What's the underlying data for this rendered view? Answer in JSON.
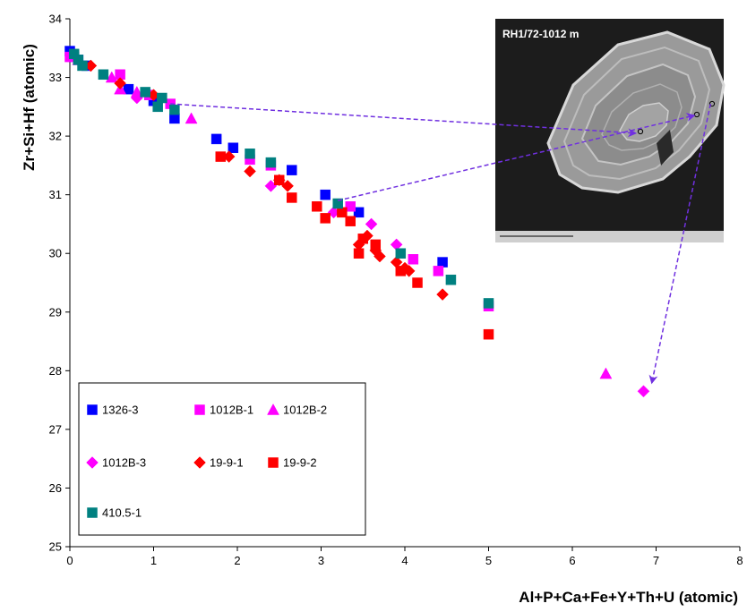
{
  "chart_data": {
    "type": "scatter",
    "title": "",
    "xlabel": "Al+P+Ca+Fe+Y+Th+U (atomic)",
    "ylabel": "Zr+Si+Hf (atomic)",
    "xlim": [
      0,
      8
    ],
    "ylim": [
      25,
      34
    ],
    "x_ticks": [
      "0",
      "1",
      "2",
      "3",
      "4",
      "5",
      "6",
      "7",
      "8"
    ],
    "y_ticks": [
      "25",
      "26",
      "27",
      "28",
      "29",
      "30",
      "31",
      "32",
      "33",
      "34"
    ],
    "grid": false,
    "legend_position": "bottom-left",
    "inset_label": "RH1/72-1012 m",
    "series": [
      {
        "name": "1326-3",
        "marker": "square",
        "color": "#0000ff",
        "points": [
          [
            0.0,
            33.45
          ],
          [
            0.05,
            33.35
          ],
          [
            0.1,
            33.3
          ],
          [
            0.2,
            33.2
          ],
          [
            0.7,
            32.8
          ],
          [
            0.95,
            32.7
          ],
          [
            1.0,
            32.6
          ],
          [
            1.25,
            32.3
          ],
          [
            1.75,
            31.95
          ],
          [
            1.95,
            31.8
          ],
          [
            2.65,
            31.42
          ],
          [
            3.05,
            31.0
          ],
          [
            3.45,
            30.7
          ],
          [
            4.45,
            29.85
          ]
        ]
      },
      {
        "name": "1012B-1",
        "marker": "square",
        "color": "#ff00ff",
        "points": [
          [
            0.0,
            33.35
          ],
          [
            0.6,
            33.05
          ],
          [
            0.95,
            32.7
          ],
          [
            1.2,
            32.55
          ],
          [
            2.15,
            31.6
          ],
          [
            2.4,
            31.5
          ],
          [
            3.35,
            30.8
          ],
          [
            4.1,
            29.9
          ],
          [
            4.4,
            29.7
          ],
          [
            5.0,
            29.1
          ]
        ]
      },
      {
        "name": "1012B-2",
        "marker": "triangle",
        "color": "#ff00ff",
        "points": [
          [
            0.1,
            33.3
          ],
          [
            0.5,
            33.0
          ],
          [
            0.6,
            32.8
          ],
          [
            0.8,
            32.75
          ],
          [
            1.45,
            32.3
          ],
          [
            6.4,
            27.95
          ]
        ]
      },
      {
        "name": "1012B-3",
        "marker": "diamond",
        "color": "#ff00ff",
        "points": [
          [
            0.8,
            32.65
          ],
          [
            2.4,
            31.15
          ],
          [
            3.15,
            30.7
          ],
          [
            3.6,
            30.5
          ],
          [
            3.9,
            30.15
          ],
          [
            6.85,
            27.65
          ]
        ]
      },
      {
        "name": "19-9-1",
        "marker": "diamond",
        "color": "#ff0000",
        "points": [
          [
            0.25,
            33.2
          ],
          [
            0.6,
            32.9
          ],
          [
            1.0,
            32.7
          ],
          [
            1.9,
            31.65
          ],
          [
            2.15,
            31.4
          ],
          [
            2.5,
            31.25
          ],
          [
            2.6,
            31.15
          ],
          [
            3.45,
            30.15
          ],
          [
            3.55,
            30.3
          ],
          [
            3.65,
            30.05
          ],
          [
            3.7,
            29.95
          ],
          [
            3.9,
            29.85
          ],
          [
            4.0,
            29.75
          ],
          [
            4.05,
            29.7
          ],
          [
            4.45,
            29.3
          ]
        ]
      },
      {
        "name": "19-9-2",
        "marker": "square",
        "color": "#ff0000",
        "points": [
          [
            1.8,
            31.65
          ],
          [
            2.5,
            31.25
          ],
          [
            2.65,
            30.95
          ],
          [
            2.95,
            30.8
          ],
          [
            3.05,
            30.6
          ],
          [
            3.25,
            30.7
          ],
          [
            3.35,
            30.55
          ],
          [
            3.45,
            30.0
          ],
          [
            3.5,
            30.25
          ],
          [
            3.65,
            30.15
          ],
          [
            3.95,
            29.7
          ],
          [
            4.15,
            29.5
          ],
          [
            5.0,
            28.62
          ]
        ]
      },
      {
        "name": "410.5-1",
        "marker": "square",
        "color": "#008080",
        "points": [
          [
            0.05,
            33.4
          ],
          [
            0.1,
            33.3
          ],
          [
            0.15,
            33.2
          ],
          [
            0.4,
            33.05
          ],
          [
            0.9,
            32.75
          ],
          [
            1.05,
            32.5
          ],
          [
            1.1,
            32.65
          ],
          [
            1.25,
            32.45
          ],
          [
            2.15,
            31.7
          ],
          [
            2.4,
            31.55
          ],
          [
            3.2,
            30.85
          ],
          [
            3.95,
            30.0
          ],
          [
            4.55,
            29.55
          ],
          [
            5.0,
            29.15
          ]
        ]
      }
    ],
    "annotations": [
      {
        "type": "arrow",
        "from": [
          1.2,
          32.55
        ],
        "to": [
          6.75,
          32.05
        ]
      },
      {
        "type": "arrow",
        "from": [
          3.2,
          30.9
        ],
        "to": [
          7.45,
          32.35
        ]
      },
      {
        "type": "arrow",
        "from": [
          7.65,
          32.55
        ],
        "to": [
          6.95,
          27.8
        ]
      }
    ]
  }
}
